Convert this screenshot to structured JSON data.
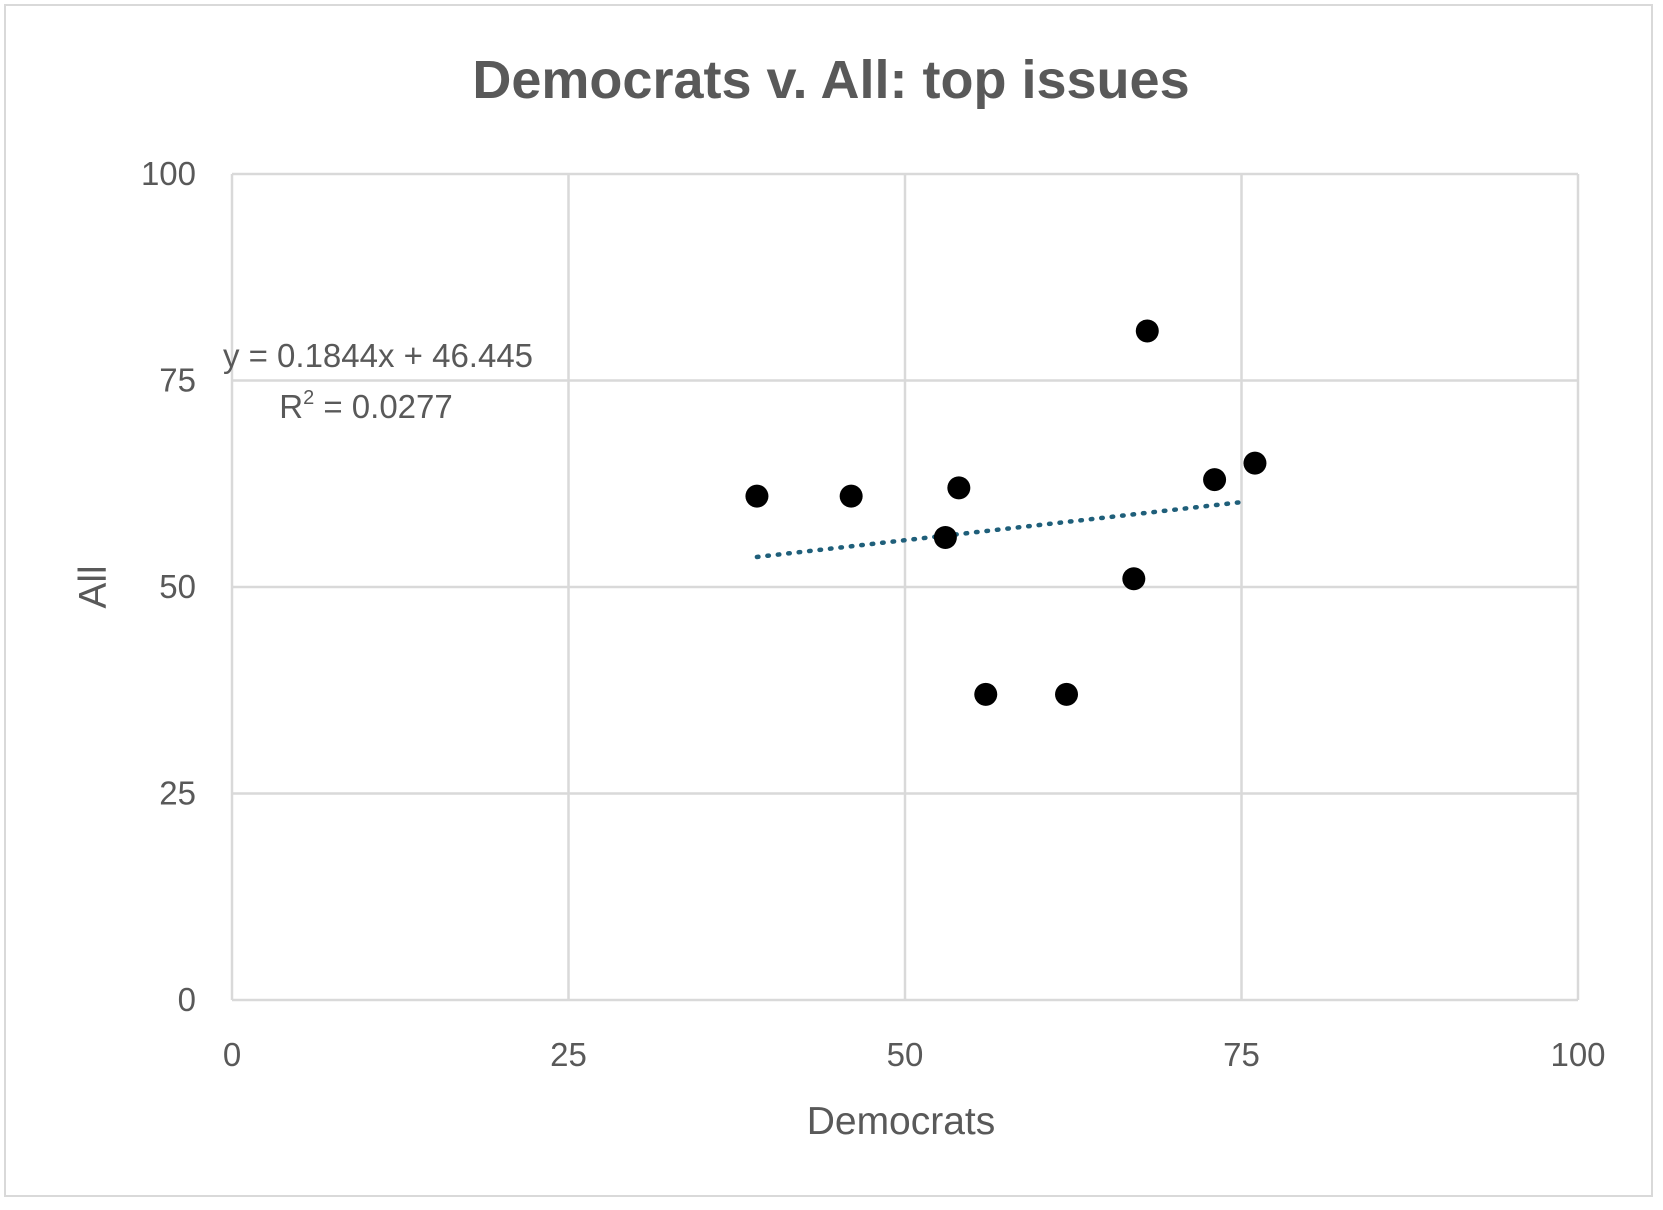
{
  "chart_data": {
    "type": "scatter",
    "title": "Democrats v. All: top issues",
    "xlabel": "Democrats",
    "ylabel": "All",
    "xlim": [
      0,
      100
    ],
    "ylim": [
      0,
      100
    ],
    "x_ticks": [
      "0",
      "25",
      "50",
      "75",
      "100"
    ],
    "y_ticks": [
      "0",
      "25",
      "50",
      "75",
      "100"
    ],
    "grid": true,
    "series": [
      {
        "points": [
          {
            "x": 39,
            "y": 61
          },
          {
            "x": 46,
            "y": 61
          },
          {
            "x": 53,
            "y": 56
          },
          {
            "x": 54,
            "y": 62
          },
          {
            "x": 56,
            "y": 37
          },
          {
            "x": 62,
            "y": 37
          },
          {
            "x": 67,
            "y": 51
          },
          {
            "x": 68,
            "y": 81
          },
          {
            "x": 73,
            "y": 63
          },
          {
            "x": 76,
            "y": 65
          }
        ],
        "color": "#000000"
      }
    ],
    "trendline": {
      "type": "linear",
      "slope": 0.1844,
      "intercept": 46.445,
      "x_range": [
        39,
        75
      ],
      "color": "#1f5f7a",
      "style": "dotted",
      "equation_label": "y = 0.1844x + 46.445",
      "r2_prefix": "R",
      "r2_exponent": "2",
      "r2_value": " = 0.0277"
    }
  }
}
